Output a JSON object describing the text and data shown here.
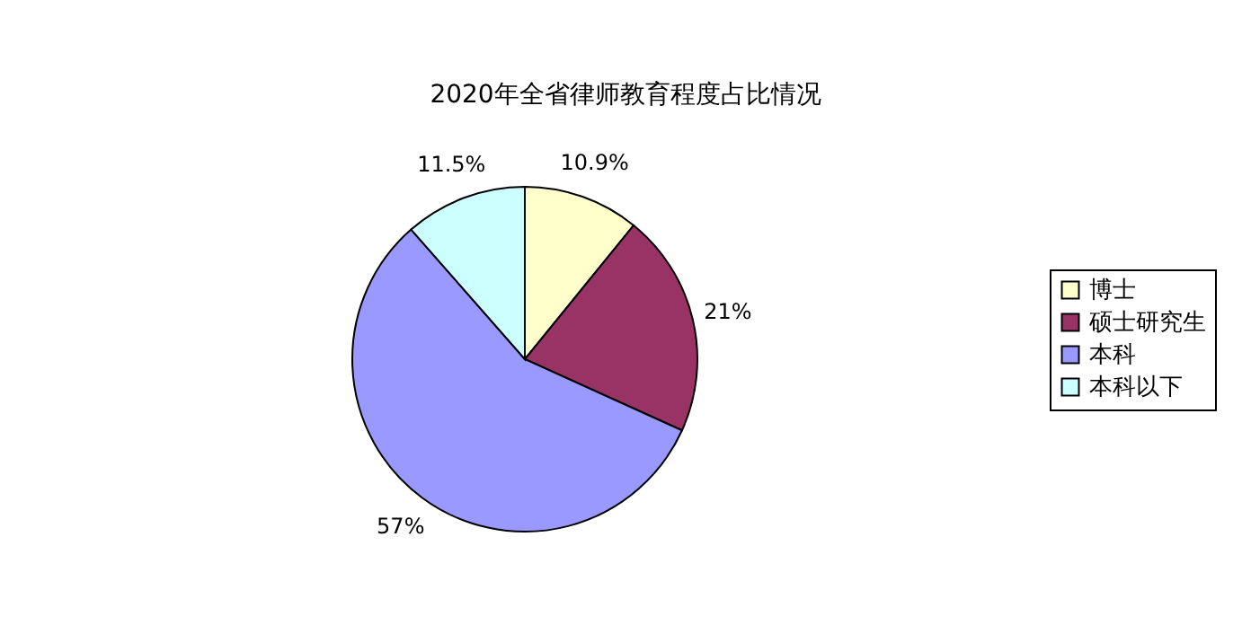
{
  "chart_data": {
    "type": "pie",
    "title": "2020年全省律师教育程度占比情况",
    "categories": [
      "博士",
      "硕士研究生",
      "本科",
      "本科以下"
    ],
    "values": [
      10.9,
      21,
      57,
      11.5
    ],
    "value_labels": [
      "10.9%",
      "21%",
      "57%",
      "11.5%"
    ],
    "colors": [
      "#ffffcc",
      "#993366",
      "#9999ff",
      "#ccffff"
    ],
    "legend": "right"
  }
}
